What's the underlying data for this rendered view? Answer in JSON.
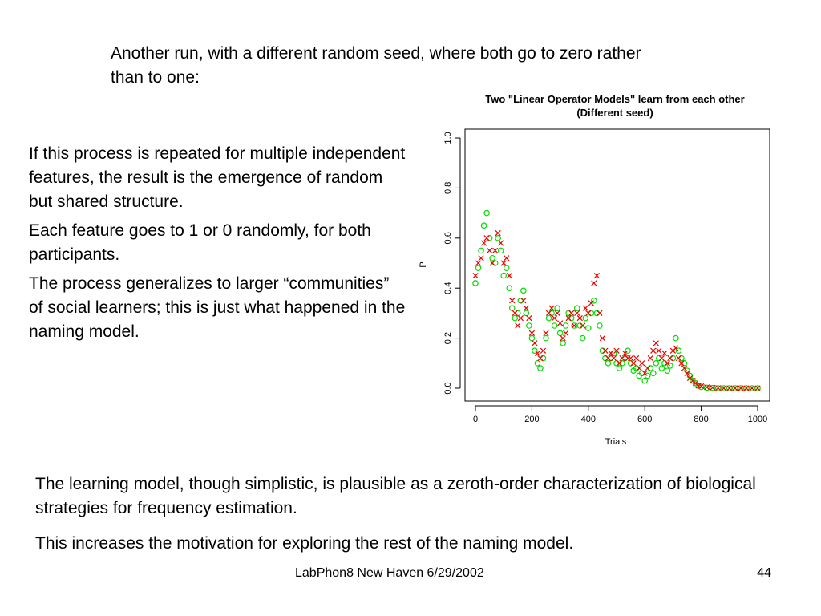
{
  "slide": {
    "intro": "Another run, with a different random seed, where both go to zero rather than to one:",
    "left_paragraphs": [
      "If this process is repeated for multiple independent features, the result is the emergence of random but shared structure.",
      "Each feature goes to 1 or 0 randomly, for both participants.",
      "The process generalizes to larger “communities” of social learners; this is just what happened in the naming model."
    ],
    "bottom_paragraphs": [
      "The learning model, though simplistic, is plausible as a zeroth-order characterization of biological strategies for frequency estimation.",
      "This increases the motivation for exploring the rest of the naming model."
    ],
    "footer": "LabPhon8 New Haven 6/29/2002",
    "page_number": "44"
  },
  "chart_data": {
    "type": "scatter",
    "title": "Two \"Linear Operator Models\" learn from each other",
    "subtitle": "(Different seed)",
    "xlabel": "Trials",
    "ylabel": "P",
    "xlim": [
      0,
      1000
    ],
    "ylim": [
      0,
      1
    ],
    "x_ticks": [
      0,
      200,
      400,
      600,
      800,
      1000
    ],
    "y_ticks": [
      0.0,
      0.2,
      0.4,
      0.6,
      0.8,
      1.0
    ],
    "y_tick_labels": [
      "0.0",
      "0.2",
      "0.4",
      "0.6",
      "0.8",
      "1.0"
    ],
    "grid": false,
    "series": [
      {
        "marker": "circle",
        "color": "#00dd00",
        "x": [
          0,
          10,
          20,
          30,
          40,
          50,
          60,
          70,
          80,
          90,
          100,
          110,
          120,
          130,
          140,
          150,
          160,
          170,
          180,
          190,
          200,
          210,
          220,
          230,
          240,
          250,
          260,
          270,
          280,
          290,
          300,
          310,
          320,
          330,
          340,
          350,
          360,
          370,
          380,
          390,
          400,
          410,
          420,
          430,
          440,
          450,
          460,
          470,
          480,
          490,
          500,
          510,
          520,
          530,
          540,
          550,
          560,
          570,
          580,
          590,
          600,
          610,
          620,
          630,
          640,
          650,
          660,
          670,
          680,
          690,
          700,
          710,
          720,
          730,
          740,
          750,
          760,
          770,
          780,
          790,
          800,
          820,
          840,
          860,
          880,
          900,
          920,
          940,
          960,
          980,
          1000
        ],
        "y": [
          0.42,
          0.48,
          0.55,
          0.65,
          0.7,
          0.6,
          0.52,
          0.5,
          0.6,
          0.55,
          0.45,
          0.48,
          0.4,
          0.32,
          0.28,
          0.3,
          0.35,
          0.39,
          0.3,
          0.25,
          0.2,
          0.15,
          0.1,
          0.08,
          0.12,
          0.2,
          0.28,
          0.3,
          0.25,
          0.32,
          0.22,
          0.18,
          0.25,
          0.3,
          0.28,
          0.25,
          0.32,
          0.25,
          0.2,
          0.28,
          0.24,
          0.3,
          0.35,
          0.3,
          0.25,
          0.15,
          0.12,
          0.1,
          0.12,
          0.14,
          0.1,
          0.08,
          0.1,
          0.12,
          0.15,
          0.1,
          0.07,
          0.08,
          0.05,
          0.06,
          0.03,
          0.05,
          0.08,
          0.06,
          0.1,
          0.12,
          0.08,
          0.1,
          0.07,
          0.09,
          0.12,
          0.2,
          0.15,
          0.12,
          0.1,
          0.07,
          0.05,
          0.03,
          0.02,
          0.01,
          0.005,
          0.002,
          0.001,
          0.0,
          0.0,
          0.0,
          0.0,
          0.0,
          0.0,
          0.0,
          0.0
        ]
      },
      {
        "marker": "x",
        "color": "#ee0000",
        "x": [
          0,
          10,
          20,
          30,
          40,
          50,
          60,
          70,
          80,
          90,
          100,
          110,
          120,
          130,
          140,
          150,
          160,
          170,
          180,
          190,
          200,
          210,
          220,
          230,
          240,
          250,
          260,
          270,
          280,
          290,
          300,
          310,
          320,
          330,
          340,
          350,
          360,
          370,
          380,
          390,
          400,
          410,
          420,
          430,
          440,
          450,
          460,
          470,
          480,
          490,
          500,
          510,
          520,
          530,
          540,
          550,
          560,
          570,
          580,
          590,
          600,
          610,
          620,
          630,
          640,
          650,
          660,
          670,
          680,
          690,
          700,
          710,
          720,
          730,
          740,
          750,
          760,
          770,
          780,
          790,
          800,
          820,
          840,
          860,
          880,
          900,
          920,
          940,
          960,
          980,
          1000
        ],
        "y": [
          0.45,
          0.5,
          0.52,
          0.58,
          0.6,
          0.55,
          0.5,
          0.55,
          0.62,
          0.58,
          0.5,
          0.52,
          0.45,
          0.35,
          0.3,
          0.25,
          0.28,
          0.35,
          0.32,
          0.28,
          0.22,
          0.18,
          0.14,
          0.12,
          0.15,
          0.22,
          0.3,
          0.32,
          0.28,
          0.3,
          0.26,
          0.2,
          0.22,
          0.28,
          0.3,
          0.25,
          0.3,
          0.28,
          0.25,
          0.32,
          0.3,
          0.34,
          0.42,
          0.45,
          0.3,
          0.2,
          0.15,
          0.12,
          0.14,
          0.12,
          0.15,
          0.1,
          0.12,
          0.14,
          0.12,
          0.12,
          0.1,
          0.12,
          0.08,
          0.1,
          0.06,
          0.08,
          0.12,
          0.15,
          0.18,
          0.15,
          0.12,
          0.14,
          0.1,
          0.12,
          0.15,
          0.16,
          0.12,
          0.1,
          0.08,
          0.06,
          0.04,
          0.03,
          0.02,
          0.01,
          0.008,
          0.004,
          0.002,
          0.001,
          0.0,
          0.0,
          0.0,
          0.0,
          0.0,
          0.0,
          0.0
        ]
      }
    ]
  }
}
